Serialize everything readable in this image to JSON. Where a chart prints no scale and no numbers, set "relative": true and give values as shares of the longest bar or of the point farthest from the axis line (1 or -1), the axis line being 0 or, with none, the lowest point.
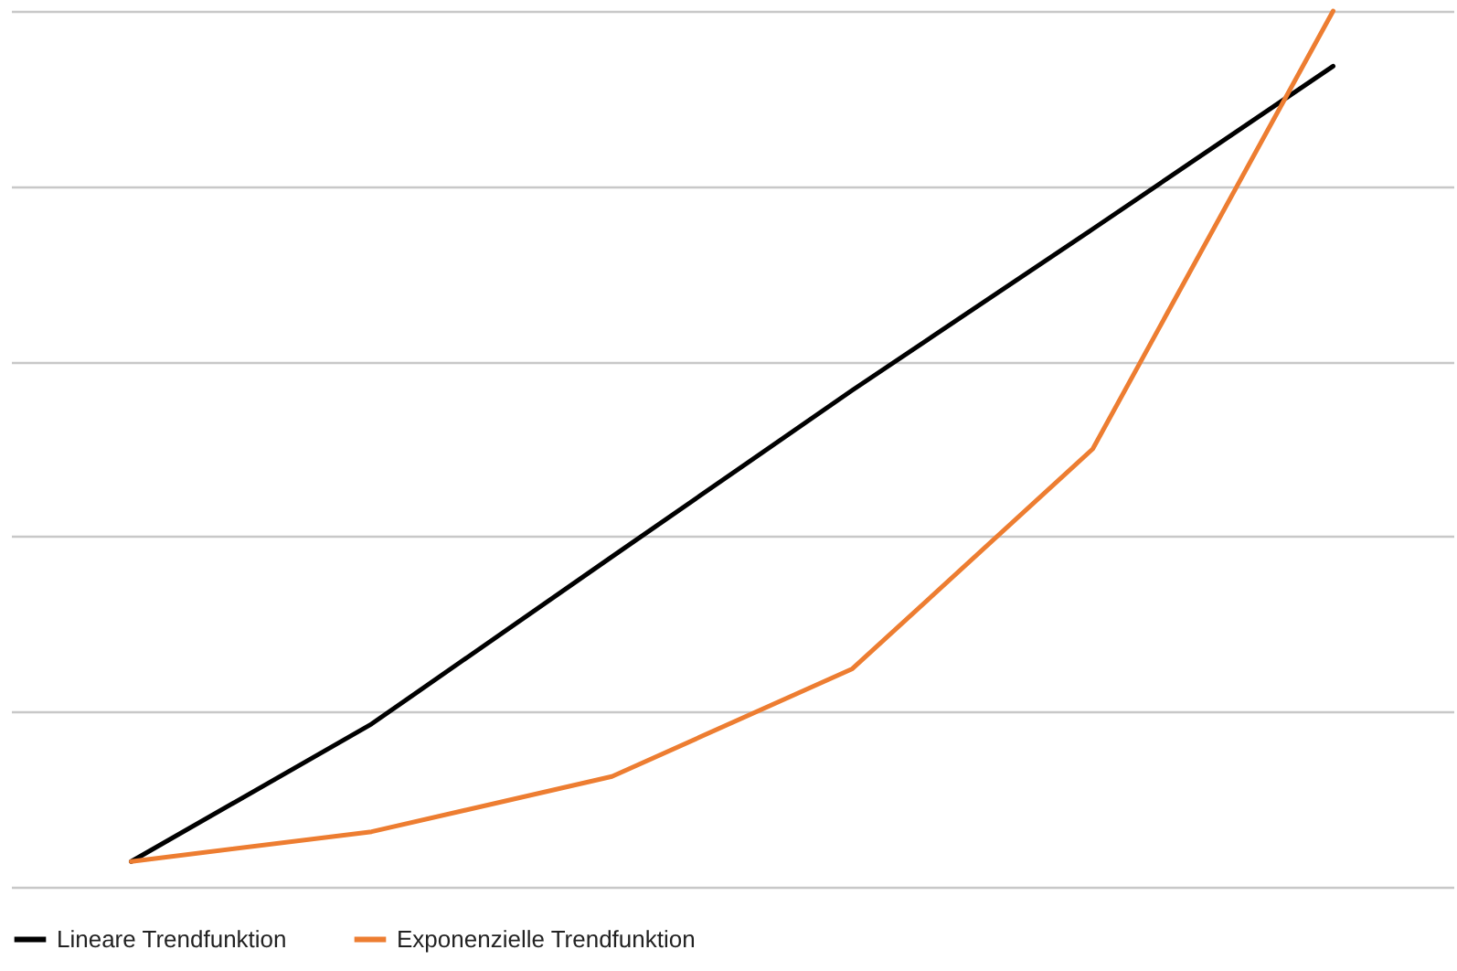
{
  "chart_data": {
    "type": "line",
    "relative": true,
    "categories": [
      null,
      null,
      null,
      null,
      null,
      null
    ],
    "series": [
      {
        "name": "Lineare Trendfunktion",
        "color": "#000000",
        "values": [
          0.029,
          0.186,
          0.377,
          0.567,
          0.751,
          0.937
        ]
      },
      {
        "name": "Exponenzielle Trendfunktion",
        "color": "#ed7d31",
        "values": [
          0.029,
          0.063,
          0.126,
          0.249,
          0.5,
          1
        ]
      }
    ],
    "grid": "y",
    "legend": "bottom",
    "marker": "none",
    "line_style": "solid"
  }
}
